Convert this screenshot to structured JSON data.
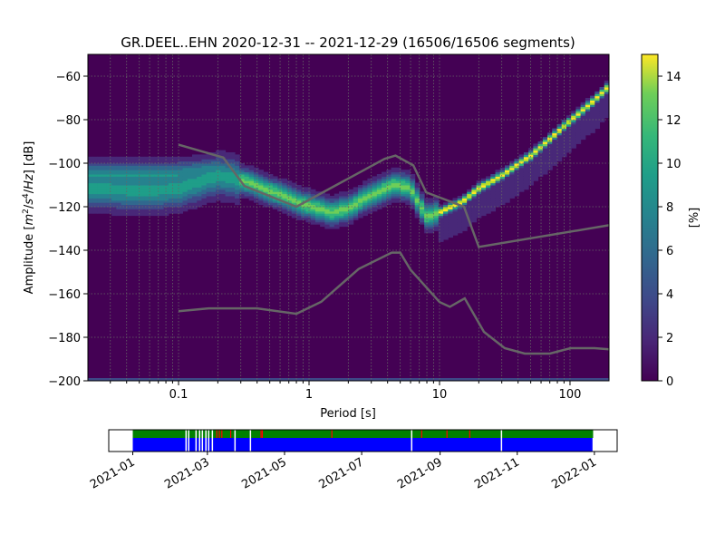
{
  "chart_data": {
    "type": "heatmap",
    "title": "GR.DEEL..EHN   2020-12-31 -- 2021-12-29  (16506/16506 segments)",
    "xlabel": "Period [s]",
    "ylabel_parts": [
      "Amplitude [",
      "m",
      "2",
      "/",
      "s",
      "4",
      "/",
      "Hz",
      "] [dB]"
    ],
    "xscale": "log",
    "xlim": [
      0.0202,
      199
    ],
    "ylim": [
      -200,
      -50
    ],
    "xticks": [
      {
        "v": 0.1,
        "label": "0.1"
      },
      {
        "v": 1,
        "label": "1"
      },
      {
        "v": 10,
        "label": "10"
      },
      {
        "v": 100,
        "label": "100"
      }
    ],
    "yticks": [
      {
        "v": -60,
        "label": "−60"
      },
      {
        "v": -80,
        "label": "−80"
      },
      {
        "v": -100,
        "label": "−100"
      },
      {
        "v": -120,
        "label": "−120"
      },
      {
        "v": -140,
        "label": "−140"
      },
      {
        "v": -160,
        "label": "−160"
      },
      {
        "v": -180,
        "label": "−180"
      },
      {
        "v": -200,
        "label": "−200"
      }
    ],
    "grid": true,
    "colorbar": {
      "label": "[%]",
      "range": [
        0,
        15
      ],
      "ticks": [
        {
          "v": 0,
          "label": "0"
        },
        {
          "v": 2,
          "label": "2"
        },
        {
          "v": 4,
          "label": "4"
        },
        {
          "v": 6,
          "label": "6"
        },
        {
          "v": 8,
          "label": "8"
        },
        {
          "v": 10,
          "label": "10"
        },
        {
          "v": 12,
          "label": "12"
        },
        {
          "v": 14,
          "label": "14"
        }
      ],
      "colormap": "viridis"
    },
    "ppsd_mode": [
      [
        0.02,
        -112
      ],
      [
        0.06,
        -113
      ],
      [
        0.1,
        -112
      ],
      [
        0.2,
        -106
      ],
      [
        0.3,
        -108
      ],
      [
        0.5,
        -113
      ],
      [
        0.8,
        -118
      ],
      [
        1,
        -120
      ],
      [
        1.5,
        -123
      ],
      [
        2,
        -121
      ],
      [
        3,
        -115
      ],
      [
        4.5,
        -110
      ],
      [
        6,
        -112
      ],
      [
        8,
        -125
      ],
      [
        10,
        -123
      ],
      [
        15,
        -118
      ],
      [
        20,
        -112
      ],
      [
        30,
        -106
      ],
      [
        50,
        -97
      ],
      [
        100,
        -81
      ],
      [
        150,
        -72
      ],
      [
        199,
        -65
      ]
    ],
    "ppsd_secondary": [
      [
        0.02,
        -106
      ],
      [
        0.1,
        -106
      ],
      [
        0.2,
        -104
      ]
    ],
    "nhnm": [
      [
        0.1,
        -91.5
      ],
      [
        0.22,
        -97.4
      ],
      [
        0.32,
        -110.5
      ],
      [
        0.8,
        -120
      ],
      [
        3.8,
        -98
      ],
      [
        4.6,
        -96.5
      ],
      [
        6.3,
        -101
      ],
      [
        7.9,
        -113.4
      ],
      [
        15.4,
        -120
      ],
      [
        20,
        -138.5
      ],
      [
        199,
        -128.5
      ]
    ],
    "nlnm": [
      [
        0.1,
        -168
      ],
      [
        0.17,
        -166.7
      ],
      [
        0.4,
        -166.7
      ],
      [
        0.8,
        -169.2
      ],
      [
        1.24,
        -163.7
      ],
      [
        2.4,
        -148.6
      ],
      [
        4.3,
        -141.1
      ],
      [
        5,
        -141.1
      ],
      [
        6,
        -149
      ],
      [
        10,
        -163.8
      ],
      [
        12,
        -166
      ],
      [
        15.6,
        -162.1
      ],
      [
        21.9,
        -177.5
      ],
      [
        31.6,
        -185
      ],
      [
        45,
        -187.5
      ],
      [
        70,
        -187.5
      ],
      [
        101,
        -185
      ],
      [
        154,
        -185
      ],
      [
        199,
        -185.5
      ]
    ],
    "timeline": {
      "start_day": 0,
      "end_day": 364,
      "xlim_days": [
        -19,
        383
      ],
      "ticks": [
        {
          "day": 0,
          "label": "2021-01"
        },
        {
          "day": 59,
          "label": "2021-03"
        },
        {
          "day": 120,
          "label": "2021-05"
        },
        {
          "day": 181,
          "label": "2021-07"
        },
        {
          "day": 243,
          "label": "2021-09"
        },
        {
          "day": 304,
          "label": "2021-11"
        },
        {
          "day": 365,
          "label": "2022-01"
        }
      ],
      "gap_days": [
        41.6,
        43.7,
        49.5,
        52.3,
        54.5,
        57.3,
        59.5,
        62.4,
        80.3,
        92.5,
        220,
        291
      ],
      "overlap_days": [
        66,
        68,
        70,
        77,
        101,
        102,
        157,
        228,
        248,
        266
      ]
    },
    "colors": {
      "background": "#440154",
      "model_line": "#666666",
      "data": "#008000",
      "coverage": "#0000ff",
      "overlap": "#ff0000"
    }
  }
}
